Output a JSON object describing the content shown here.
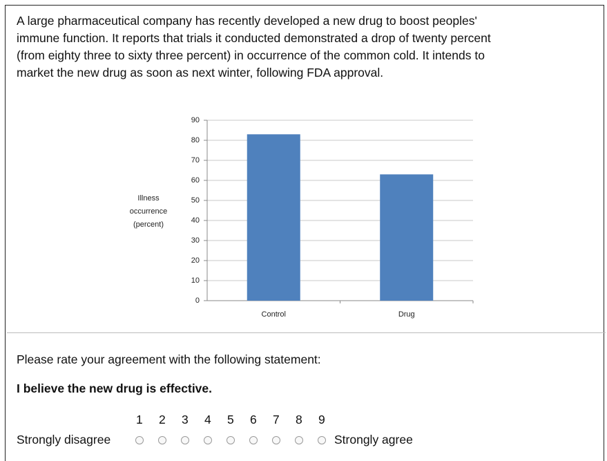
{
  "passage": [
    "A large pharmaceutical company has recently developed a new drug to boost peoples'",
    "immune function. It reports that trials it conducted demonstrated a drop of twenty percent",
    "(from eighty three to sixty three percent) in occurrence of the common cold. It intends to",
    "market the new drug as soon as next winter, following FDA approval."
  ],
  "chart_data": {
    "type": "bar",
    "y_label": [
      "Illness",
      "occurrence",
      "(percent)"
    ],
    "categories": [
      "Control",
      "Drug"
    ],
    "values": [
      83,
      63
    ],
    "color": "#4f81bd",
    "ylim": [
      0,
      90
    ],
    "yticks": [
      0,
      10,
      20,
      30,
      40,
      50,
      60,
      70,
      80,
      90
    ],
    "grid": true
  },
  "question": "Please rate your agreement with the following statement:",
  "statement": "I believe the new drug is effective.",
  "scale": {
    "low_label": "Strongly disagree",
    "high_label": "Strongly agree",
    "points": [
      1,
      2,
      3,
      4,
      5,
      6,
      7,
      8,
      9
    ]
  }
}
